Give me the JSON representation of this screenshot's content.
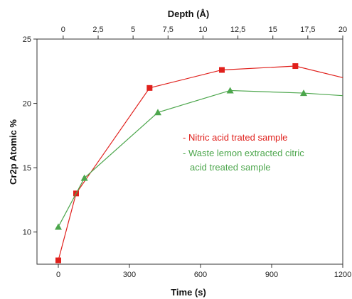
{
  "chart_data": {
    "type": "line",
    "xlabel": "Time (s)",
    "ylabel": "Cr2p Atomic %",
    "top_xlabel": "Depth  (Å)",
    "xlim": [
      -90,
      1200
    ],
    "ylim": [
      7.5,
      25
    ],
    "top_xlim": [
      -1.875,
      20
    ],
    "xticks": [
      0,
      300,
      600,
      900,
      1200
    ],
    "xtick_labels": [
      "0",
      "300",
      "600",
      "900",
      "1200"
    ],
    "yticks": [
      10,
      15,
      20,
      25
    ],
    "ytick_labels": [
      "10",
      "15",
      "20",
      "25"
    ],
    "top_xticks": [
      0,
      2.5,
      5,
      7.5,
      10,
      12.5,
      15,
      17.5,
      20
    ],
    "top_xtick_labels": [
      "0",
      "2,5",
      "5",
      "7,5",
      "10",
      "12,5",
      "15",
      "17,5",
      "20"
    ],
    "grid": false,
    "legend_position": "center-right",
    "series": [
      {
        "name": "Nitric acid trated sample",
        "color": "#e0201c",
        "marker": "square",
        "x": [
          0,
          75,
          385,
          690,
          1000,
          1200
        ],
        "y": [
          7.8,
          13.0,
          21.2,
          22.6,
          22.9,
          22.0
        ],
        "markers_shown": [
          true,
          true,
          true,
          true,
          true,
          false
        ]
      },
      {
        "name": "Waste lemon extracted citric acid treated sample",
        "color": "#4ca64c",
        "marker": "triangle",
        "x": [
          0,
          110,
          420,
          725,
          1035,
          1200
        ],
        "y": [
          10.4,
          14.2,
          19.3,
          21.0,
          20.8,
          20.6
        ],
        "markers_shown": [
          true,
          true,
          true,
          true,
          true,
          false
        ]
      }
    ]
  },
  "legend": {
    "line1": "- Nitric acid trated sample",
    "line2a": "- Waste lemon extracted citric",
    "line2b": "acid treated sample"
  }
}
